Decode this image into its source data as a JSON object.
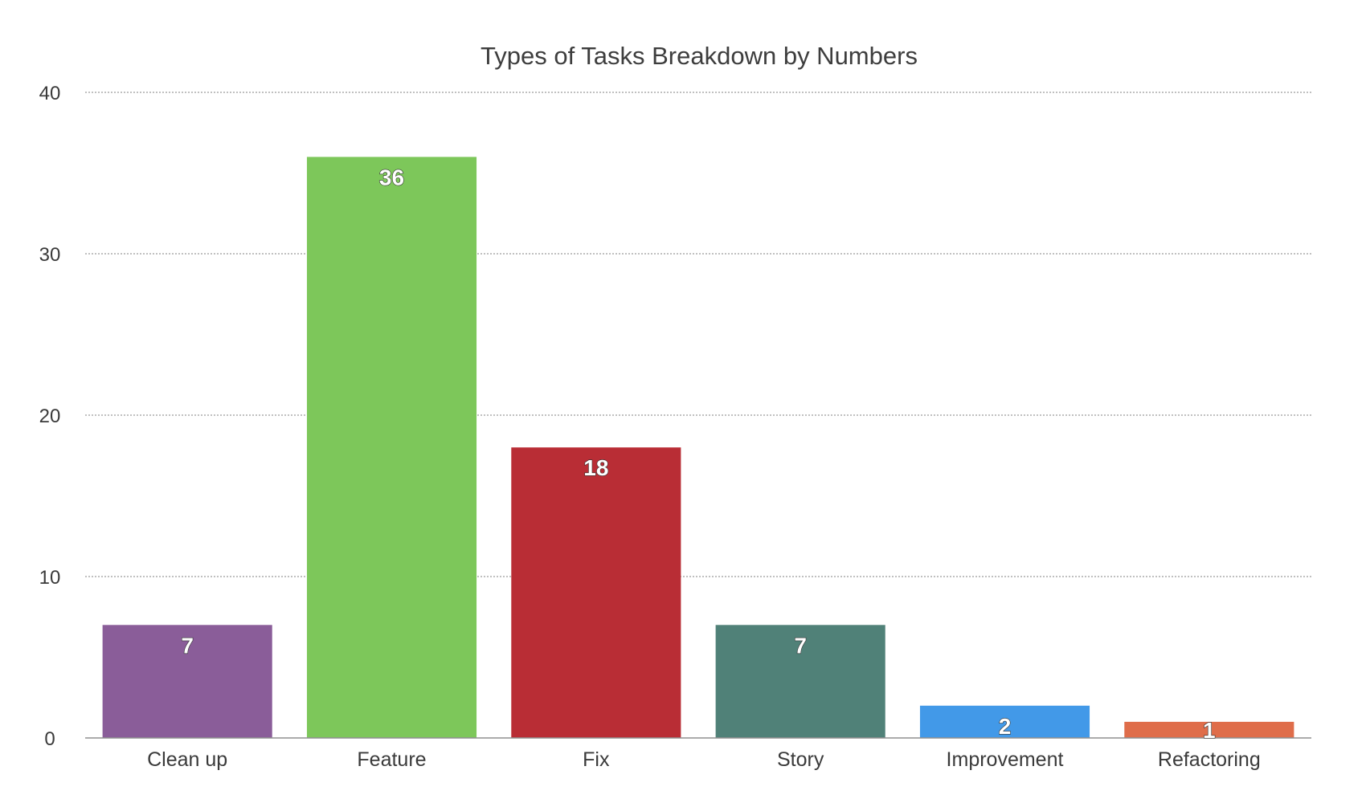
{
  "chart_data": {
    "type": "bar",
    "title": "Types of Tasks Breakdown by Numbers",
    "xlabel": "",
    "ylabel": "",
    "categories": [
      "Clean up",
      "Feature",
      "Fix",
      "Story",
      "Improvement",
      "Refactoring"
    ],
    "values": [
      7,
      36,
      18,
      7,
      2,
      1
    ],
    "data_labels": [
      "7",
      "36",
      "18",
      "7",
      "2",
      "1"
    ],
    "colors": [
      "#8a5d99",
      "#7dc75a",
      "#b92d35",
      "#508178",
      "#4299e8",
      "#df6d4a"
    ],
    "ylim": [
      0,
      40
    ],
    "yticks": [
      0,
      10,
      20,
      30,
      40
    ],
    "ytick_labels": [
      "0",
      "10",
      "20",
      "30",
      "40"
    ],
    "grid": true,
    "grid_style": "dotted",
    "legend": "none"
  }
}
